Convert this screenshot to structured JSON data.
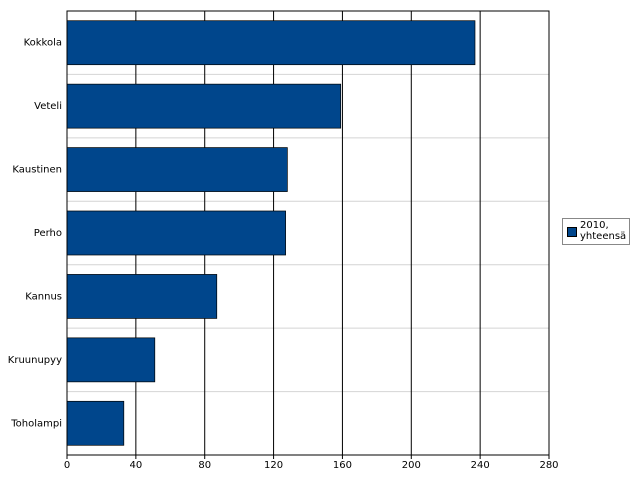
{
  "chart_data": {
    "type": "hbar",
    "categories": [
      "Kokkola",
      "Veteli",
      "Kaustinen",
      "Perho",
      "Kannus",
      "Kruunupyy",
      "Toholampi"
    ],
    "series": [
      {
        "name": "2010, yhteensä",
        "color": "#00468c",
        "values": [
          237,
          159,
          128,
          127,
          87,
          51,
          33
        ]
      }
    ],
    "xlim": [
      0,
      280
    ],
    "xticks": [
      0,
      40,
      80,
      120,
      160,
      200,
      240,
      280
    ],
    "grid": true,
    "legend": "right"
  }
}
